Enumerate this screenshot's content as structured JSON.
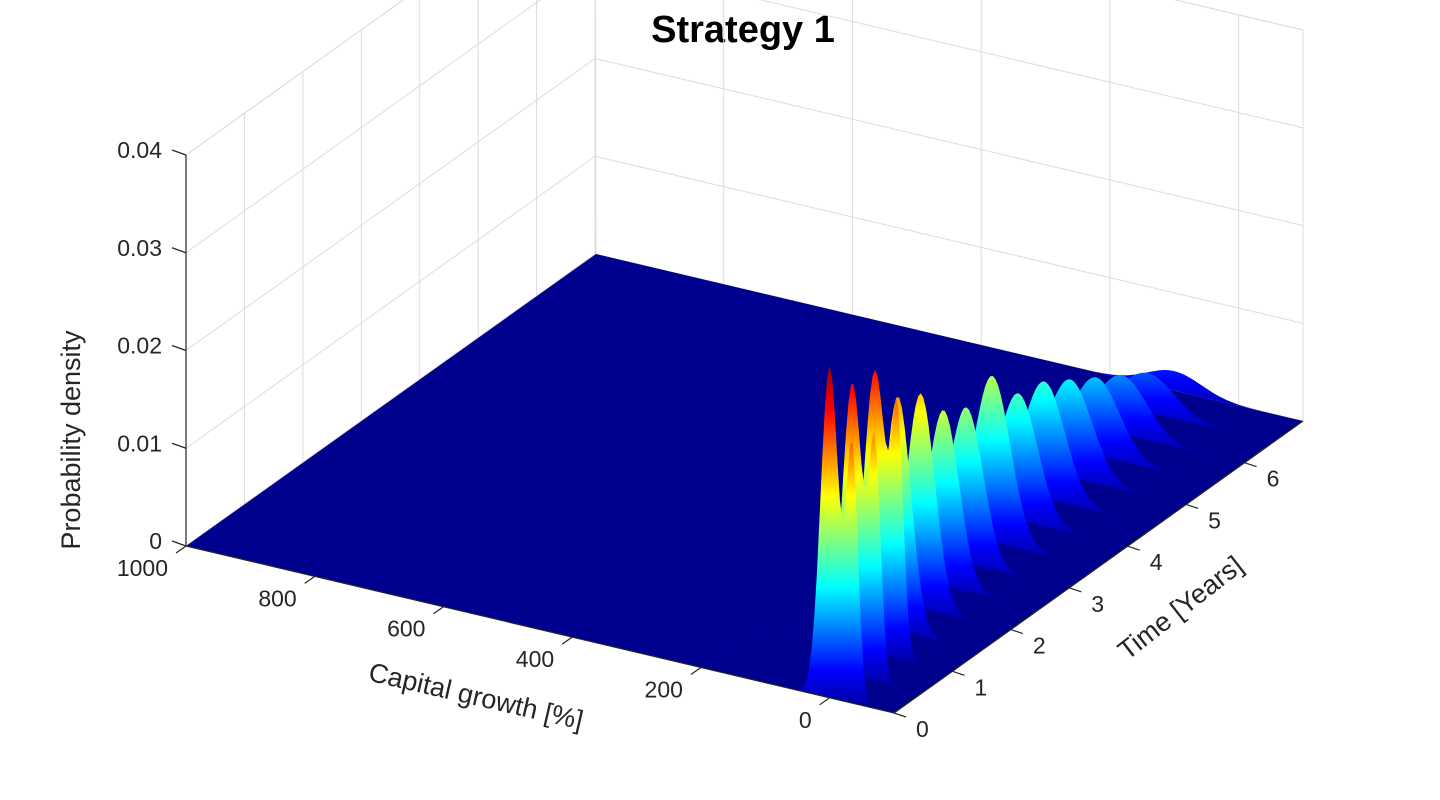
{
  "chart_data": {
    "type": "surface",
    "title": "Strategy 1",
    "xlabel": "Capital growth [%]",
    "ylabel": "Time [Years]",
    "zlabel": "Probability density",
    "x_ticks": [
      "0",
      "200",
      "400",
      "600",
      "800",
      "1000"
    ],
    "y_ticks": [
      "0",
      "1",
      "2",
      "3",
      "4",
      "5",
      "6"
    ],
    "z_ticks": [
      "0",
      "0.01",
      "0.02",
      "0.03",
      "0.04"
    ],
    "xlim": [
      -100,
      1000
    ],
    "ylim": [
      0,
      7
    ],
    "zlim": [
      0,
      0.04
    ],
    "grid": true,
    "colormap": "jet",
    "ridges": [
      {
        "time": 0.0,
        "peak_capital": 0,
        "peak_density": 0.034
      },
      {
        "time": 0.5,
        "peak_capital": 10,
        "peak_density": 0.03
      },
      {
        "time": 1.0,
        "peak_capital": 20,
        "peak_density": 0.029
      },
      {
        "time": 1.5,
        "peak_capital": 30,
        "peak_density": 0.024
      },
      {
        "time": 2.0,
        "peak_capital": 40,
        "peak_density": 0.022
      },
      {
        "time": 2.5,
        "peak_capital": 50,
        "peak_density": 0.018
      },
      {
        "time": 3.0,
        "peak_capital": 60,
        "peak_density": 0.016
      },
      {
        "time": 3.5,
        "peak_capital": 65,
        "peak_density": 0.017
      },
      {
        "time": 4.0,
        "peak_capital": 70,
        "peak_density": 0.013
      },
      {
        "time": 4.5,
        "peak_capital": 75,
        "peak_density": 0.012
      },
      {
        "time": 5.0,
        "peak_capital": 80,
        "peak_density": 0.01
      },
      {
        "time": 5.5,
        "peak_capital": 85,
        "peak_density": 0.008
      },
      {
        "time": 6.0,
        "peak_capital": 90,
        "peak_density": 0.006
      },
      {
        "time": 6.5,
        "peak_capital": 95,
        "peak_density": 0.004
      },
      {
        "time": 7.0,
        "peak_capital": 100,
        "peak_density": 0.002
      }
    ]
  }
}
